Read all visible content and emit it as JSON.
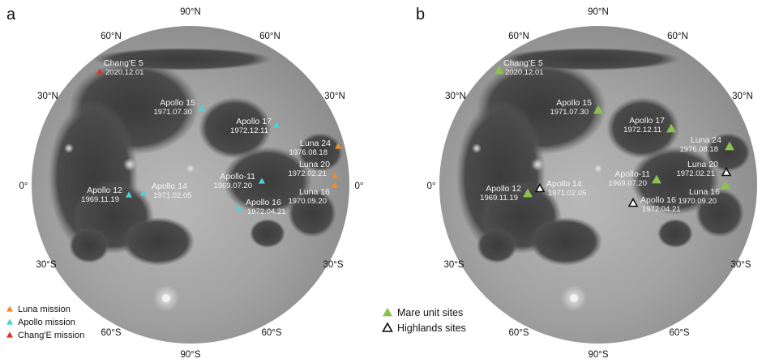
{
  "panels": [
    {
      "id": "a",
      "letter": "a",
      "degree_labels": [
        "90°N",
        "60°N",
        "60°N",
        "30°N",
        "30°N",
        "0°",
        "0°",
        "30°S",
        "30°S",
        "60°S",
        "60°S",
        "90°S"
      ],
      "sites": [
        {
          "name": "Chang'E 5",
          "date": "2020.12.01",
          "mission": "change"
        },
        {
          "name": "Apollo 15",
          "date": "1971.07.30",
          "mission": "apollo"
        },
        {
          "name": "Apollo 17",
          "date": "1972.12.11",
          "mission": "apollo"
        },
        {
          "name": "Luna 24",
          "date": "1976.08.18",
          "mission": "luna"
        },
        {
          "name": "Luna 20",
          "date": "1972.02.21",
          "mission": "luna"
        },
        {
          "name": "Apollo-11",
          "date": "1969.07.20",
          "mission": "apollo"
        },
        {
          "name": "Apollo 12",
          "date": "1969.11.19",
          "mission": "apollo"
        },
        {
          "name": "Apollo 14",
          "date": "1971.02.05",
          "mission": "apollo"
        },
        {
          "name": "Apollo 16",
          "date": "1972.04.21",
          "mission": "apollo"
        },
        {
          "name": "Luna 16",
          "date": "1970.09.20",
          "mission": "luna"
        }
      ],
      "legend": [
        {
          "label": "Luna mission",
          "color": "#f28c28",
          "marker": "triangle-icon"
        },
        {
          "label": "Apollo mission",
          "color": "#4fd1d9",
          "marker": "triangle-icon"
        },
        {
          "label": "Chang'E mission",
          "color": "#e0321e",
          "marker": "triangle-icon"
        }
      ]
    },
    {
      "id": "b",
      "letter": "b",
      "degree_labels": [
        "90°N",
        "60°N",
        "60°N",
        "30°N",
        "30°N",
        "0°",
        "0°",
        "30°S",
        "30°S",
        "60°S",
        "60°S",
        "90°S"
      ],
      "sites": [
        {
          "name": "Chang'E 5",
          "date": "2020.12.01",
          "unit": "mare"
        },
        {
          "name": "Apollo 15",
          "date": "1971.07.30",
          "unit": "mare"
        },
        {
          "name": "Apollo 17",
          "date": "1972.12.11",
          "unit": "mare"
        },
        {
          "name": "Luna 24",
          "date": "1976.08.18",
          "unit": "mare"
        },
        {
          "name": "Luna 20",
          "date": "1972.02.21",
          "unit": "highlands"
        },
        {
          "name": "Apollo-11",
          "date": "1969.07.20",
          "unit": "mare"
        },
        {
          "name": "Apollo 12",
          "date": "1969.11.19",
          "unit": "mare"
        },
        {
          "name": "Apollo 14",
          "date": "1971.02.05",
          "unit": "highlands"
        },
        {
          "name": "Apollo 16",
          "date": "1972.04.21",
          "unit": "highlands"
        },
        {
          "name": "Luna 16",
          "date": "1970.09.20",
          "unit": "mare"
        }
      ],
      "legend": [
        {
          "label": "Mare unit sites",
          "color": "#8cc152",
          "marker": "filled-triangle-icon"
        },
        {
          "label": "Highlands sites",
          "color": "#ffffff",
          "marker": "outline-triangle-icon"
        }
      ]
    }
  ],
  "colors": {
    "luna": "#f28c28",
    "apollo": "#4fd1d9",
    "change": "#e0321e",
    "mare": "#8cc152",
    "highlands": "#ffffff"
  }
}
